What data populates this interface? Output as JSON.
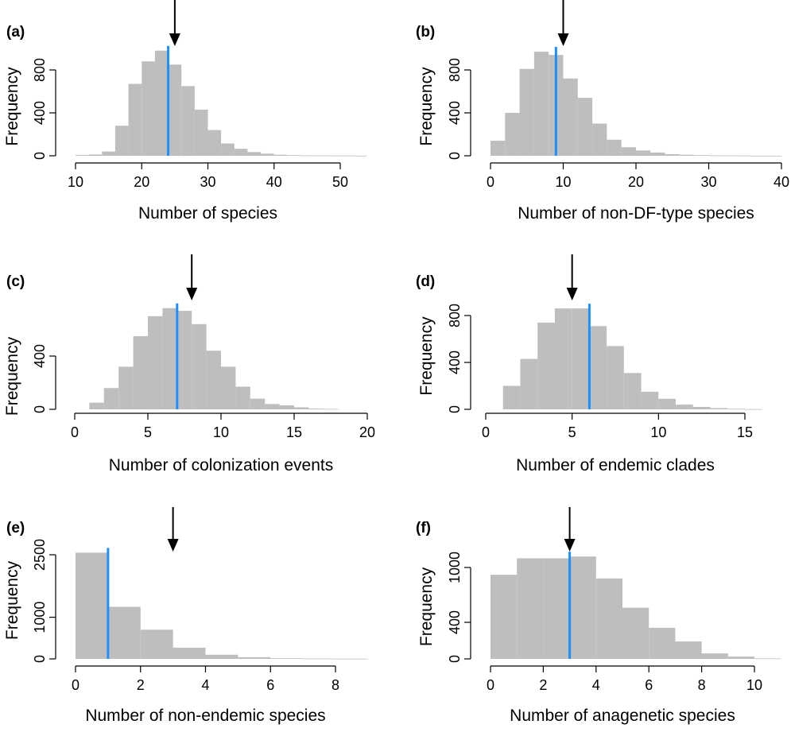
{
  "colors": {
    "bar": "#bebebe",
    "observed_line": "#1e8fff",
    "axis": "#000000",
    "arrow": "#000000"
  },
  "chart_data": [
    {
      "type": "bar",
      "panel_label": "(a)",
      "xlabel": "Number of species",
      "ylabel": "Frequency",
      "xlim": [
        10,
        54
      ],
      "xticks": [
        10,
        20,
        30,
        40,
        50
      ],
      "yticks": [
        0,
        400,
        800
      ],
      "ylim": [
        0,
        1000
      ],
      "bin_width": 2,
      "bins_start": [
        10,
        12,
        14,
        16,
        18,
        20,
        22,
        24,
        26,
        28,
        30,
        32,
        34,
        36,
        38,
        40,
        42,
        44,
        46,
        48,
        50,
        52
      ],
      "values": [
        8,
        12,
        40,
        280,
        670,
        880,
        980,
        850,
        650,
        430,
        240,
        115,
        65,
        35,
        20,
        10,
        6,
        4,
        3,
        2,
        2,
        1
      ],
      "observed_line_x": 24,
      "arrow_x": 25
    },
    {
      "type": "bar",
      "panel_label": "(b)",
      "xlabel": "Number of non-DF-type species",
      "ylabel": "Frequency",
      "xlim": [
        0,
        40
      ],
      "xticks": [
        0,
        10,
        20,
        30,
        40
      ],
      "yticks": [
        0,
        400,
        800
      ],
      "ylim": [
        0,
        1000
      ],
      "bin_width": 2,
      "bins_start": [
        0,
        2,
        4,
        6,
        8,
        10,
        12,
        14,
        16,
        18,
        20,
        22,
        24,
        26,
        28,
        30,
        32,
        34,
        36,
        38
      ],
      "values": [
        140,
        400,
        810,
        970,
        940,
        720,
        540,
        300,
        150,
        80,
        50,
        30,
        15,
        10,
        6,
        4,
        3,
        2,
        1,
        1
      ],
      "observed_line_x": 9,
      "arrow_x": 10
    },
    {
      "type": "bar",
      "panel_label": "(c)",
      "xlabel": "Number of colonization events",
      "ylabel": "Frequency",
      "xlim": [
        0,
        20
      ],
      "xticks": [
        0,
        5,
        10,
        15,
        20
      ],
      "yticks": [
        0,
        400
      ],
      "ylim": [
        0,
        800
      ],
      "bin_width": 1,
      "bins_start": [
        1,
        2,
        3,
        4,
        5,
        6,
        7,
        8,
        9,
        10,
        11,
        12,
        13,
        14,
        15,
        16,
        17
      ],
      "values": [
        50,
        160,
        320,
        550,
        700,
        760,
        740,
        640,
        440,
        320,
        170,
        80,
        40,
        30,
        15,
        6,
        3
      ],
      "observed_line_x": 7,
      "arrow_x": 8
    },
    {
      "type": "bar",
      "panel_label": "(d)",
      "xlabel": "Number of endemic clades",
      "ylabel": "Frequency",
      "xlim": [
        0,
        16
      ],
      "xticks": [
        0,
        5,
        10,
        15
      ],
      "yticks": [
        0,
        400,
        800
      ],
      "ylim": [
        0,
        1000
      ],
      "bin_width": 1,
      "bins_start": [
        1,
        2,
        3,
        4,
        5,
        6,
        7,
        8,
        9,
        10,
        11,
        12,
        13,
        14,
        15
      ],
      "values": [
        200,
        430,
        740,
        860,
        860,
        710,
        540,
        310,
        150,
        90,
        40,
        20,
        10,
        5,
        2
      ],
      "observed_line_x": 6,
      "arrow_x": 5
    },
    {
      "type": "bar",
      "panel_label": "(e)",
      "xlabel": "Number of non-endemic species",
      "ylabel": "Frequency",
      "xlim": [
        0,
        9
      ],
      "xticks": [
        0,
        2,
        4,
        6,
        8
      ],
      "yticks": [
        0,
        1000,
        2500
      ],
      "ylim": [
        0,
        3000
      ],
      "bin_width": 1,
      "bins_start": [
        0,
        1,
        2,
        3,
        4,
        5,
        6,
        7,
        8
      ],
      "values": [
        2550,
        1250,
        700,
        270,
        100,
        40,
        15,
        8,
        3
      ],
      "observed_line_x": 1,
      "arrow_x": 3
    },
    {
      "type": "bar",
      "panel_label": "(f)",
      "xlabel": "Number of anagenetic species",
      "ylabel": "Frequency",
      "xlim": [
        0,
        11
      ],
      "xticks": [
        0,
        2,
        4,
        6,
        8,
        10
      ],
      "yticks": [
        0,
        400,
        1000
      ],
      "ylim": [
        0,
        1300
      ],
      "bin_width": 1,
      "bins_start": [
        0,
        1,
        2,
        3,
        4,
        5,
        6,
        7,
        8,
        9,
        10
      ],
      "values": [
        920,
        1100,
        1100,
        1120,
        880,
        560,
        340,
        190,
        60,
        25,
        5
      ],
      "observed_line_x": 3,
      "arrow_x": 3
    }
  ]
}
